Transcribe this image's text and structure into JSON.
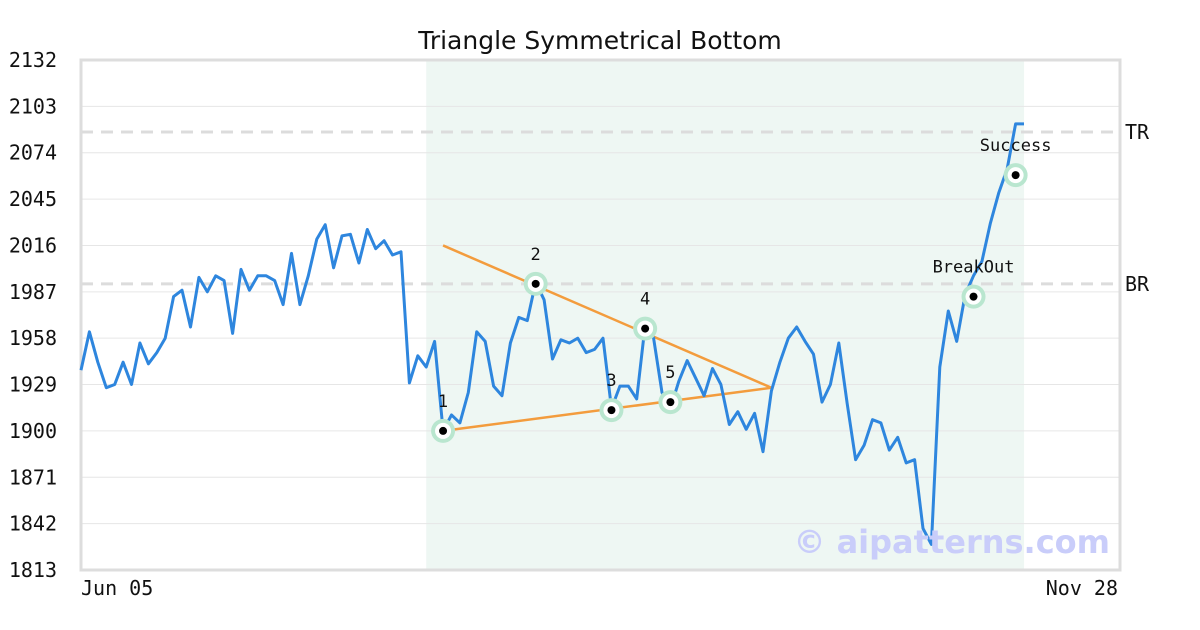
{
  "chart_data": {
    "type": "line",
    "title": "Triangle Symmetrical Bottom",
    "xlabel": "",
    "ylabel": "",
    "ylim": [
      1813,
      2132
    ],
    "y_ticks": [
      "2132",
      "2103",
      "2074",
      "2045",
      "2016",
      "1987",
      "1958",
      "1929",
      "1900",
      "1871",
      "1842",
      "1813"
    ],
    "x_tick_labels": [
      "Jun 05",
      "Nov 28"
    ],
    "grid": true,
    "pattern_region": {
      "from_index": 41,
      "to_index": 112
    },
    "series": [
      {
        "color": "#2e86de",
        "values": [
          1938,
          1962,
          1943,
          1927,
          1929,
          1943,
          1929,
          1955,
          1942,
          1949,
          1958,
          1984,
          1988,
          1965,
          1996,
          1987,
          1997,
          1994,
          1961,
          2001,
          1988,
          1997,
          1997,
          1994,
          1979,
          2011,
          1979,
          1997,
          2020,
          2029,
          2002,
          2022,
          2023,
          2005,
          2026,
          2014,
          2019,
          2010,
          2012,
          1930,
          1947,
          1940,
          1956,
          1900,
          1910,
          1905,
          1924,
          1962,
          1956,
          1928,
          1922,
          1955,
          1971,
          1969,
          1993,
          1982,
          1945,
          1957,
          1955,
          1958,
          1949,
          1951,
          1958,
          1914,
          1928,
          1928,
          1920,
          1966,
          1958,
          1924,
          1914,
          1931,
          1944,
          1933,
          1922,
          1939,
          1929,
          1904,
          1912,
          1901,
          1911,
          1887,
          1925,
          1943,
          1958,
          1965,
          1956,
          1948,
          1918,
          1929,
          1955,
          1917,
          1882,
          1891,
          1907,
          1905,
          1888,
          1896,
          1880,
          1882,
          1839,
          1829,
          1940,
          1975,
          1956,
          1985,
          1997,
          2006,
          2030,
          2049,
          2064,
          2092,
          2092
        ]
      }
    ],
    "trend_lines": [
      {
        "color": "#f39c3d",
        "from": {
          "index": 43,
          "value": 2016
        },
        "to": {
          "index": 82,
          "value": 1927
        }
      },
      {
        "color": "#f39c3d",
        "from": {
          "index": 43,
          "value": 1900
        },
        "to": {
          "index": 82,
          "value": 1927
        }
      }
    ],
    "reference_lines": [
      {
        "label": "TR",
        "value": 2087
      },
      {
        "label": "BR",
        "value": 1992
      }
    ],
    "markers": [
      {
        "label": "1",
        "index": 43,
        "value": 1900
      },
      {
        "label": "2",
        "index": 54,
        "value": 1992
      },
      {
        "label": "3",
        "index": 63,
        "value": 1913
      },
      {
        "label": "4",
        "index": 67,
        "value": 1964
      },
      {
        "label": "5",
        "index": 70,
        "value": 1918
      },
      {
        "label": "BreakOut",
        "index": 106,
        "value": 1984
      },
      {
        "label": "Success",
        "index": 111,
        "value": 2060
      }
    ],
    "watermark": "© aipatterns.com"
  }
}
